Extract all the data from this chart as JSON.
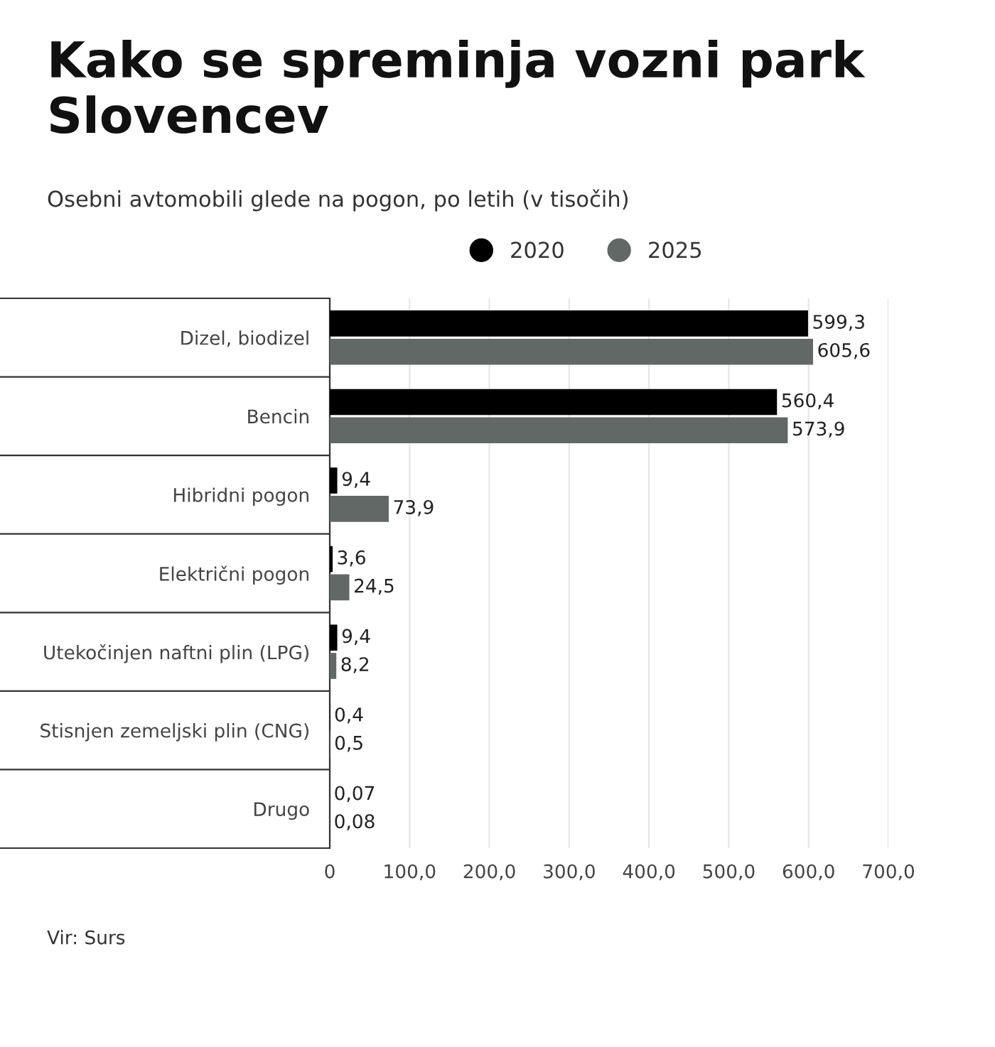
{
  "chart_data": {
    "type": "bar",
    "orientation": "horizontal",
    "title": "Kako se spreminja vozni park Slovencev",
    "subtitle": "Osebni avtomobili glede na pogon, po letih (v tisočih)",
    "annotations": [
      "Vir: Surs"
    ],
    "categories": [
      "Dizel, biodizel",
      "Bencin",
      "Hibridni pogon",
      "Električni pogon",
      "Utekočinjen naftni plin (LPG)",
      "Stisnjen zemeljski plin (CNG)",
      "Drugo"
    ],
    "series": [
      {
        "name": "2020",
        "color": "#000000",
        "values": [
          599.3,
          560.4,
          9.4,
          3.6,
          9.4,
          0.4,
          0.07
        ],
        "value_labels": [
          "599,3",
          "560,4",
          "9,4",
          "3,6",
          "9,4",
          "0,4",
          "0,07"
        ]
      },
      {
        "name": "2025",
        "color": "#626866",
        "values": [
          605.6,
          573.9,
          73.9,
          24.5,
          8.2,
          0.5,
          0.08
        ],
        "value_labels": [
          "605,6",
          "573,9",
          "73,9",
          "24,5",
          "8,2",
          "0,5",
          "0,08"
        ]
      }
    ],
    "xlim": [
      0,
      700
    ],
    "xticks": [
      0,
      {
        "value": 100,
        "label": "100,0"
      },
      {
        "value": 200,
        "label": "200,0"
      },
      {
        "value": 300,
        "label": "300,0"
      },
      {
        "value": 400,
        "label": "400,0"
      },
      {
        "value": 500,
        "label": "500,0"
      },
      {
        "value": 600,
        "label": "600,0"
      },
      {
        "value": 700,
        "label": "700,0"
      }
    ],
    "grid": "x",
    "legend": "top"
  }
}
